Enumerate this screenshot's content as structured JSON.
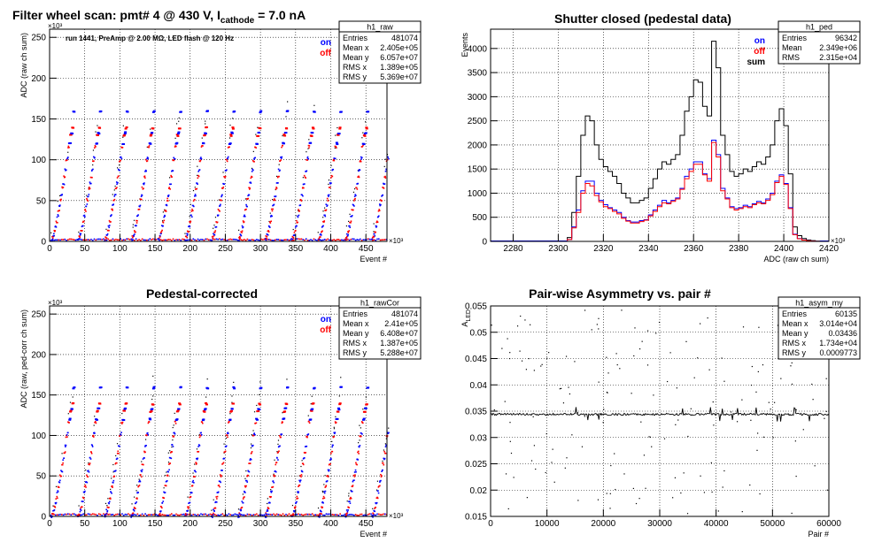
{
  "colors": {
    "on": "#0000ff",
    "off": "#ff0000",
    "sum": "#000000",
    "frame": "#000000",
    "grid": "#000000"
  },
  "chart_data": [
    {
      "id": "raw",
      "type": "scatter",
      "title": "Filter wheel scan: pmt#   4 @   430 V, I",
      "title_sub": "cathode",
      "title_tail": " = 7.0 nA",
      "ylabel": "ADC (raw ch sum)",
      "xlabel": "Event #",
      "y_exponent": "×10³",
      "x_exponent": "×10³",
      "xlim": [
        0,
        480
      ],
      "ylim": [
        0,
        260
      ],
      "xticks": [
        0,
        50,
        100,
        150,
        200,
        250,
        300,
        350,
        400,
        450
      ],
      "yticks": [
        0,
        50,
        100,
        150,
        200,
        250
      ],
      "annotation": "run 1441, PreAmp @ 2.00 MΩ,  LED flash @  120 Hz",
      "legend": [
        "on",
        "off"
      ],
      "stats": {
        "title": "h1_raw",
        "rows": [
          [
            "Entries",
            "481074"
          ],
          [
            "Mean x",
            "2.405e+05"
          ],
          [
            "Mean y",
            "6.057e+07"
          ],
          [
            "RMS x",
            "1.389e+05"
          ],
          [
            "RMS y",
            "5.369e+07"
          ]
        ]
      },
      "levels": [
        3,
        6,
        9,
        13,
        19,
        25,
        32,
        39,
        45,
        52,
        57,
        66,
        72,
        80,
        88,
        100,
        103,
        117,
        121,
        131,
        134,
        140,
        160
      ],
      "cycle_period": 38
    },
    {
      "id": "ped",
      "type": "line",
      "title": "Shutter closed (pedestal data)",
      "ylabel": "Events",
      "xlabel": "ADC (raw ch sum)",
      "x_exponent": "×10³",
      "xlim": [
        2270,
        2420
      ],
      "ylim": [
        0,
        4400
      ],
      "xticks": [
        2280,
        2300,
        2320,
        2340,
        2360,
        2380,
        2400,
        2420
      ],
      "yticks": [
        0,
        500,
        1000,
        1500,
        2000,
        2500,
        3000,
        3500,
        4000
      ],
      "legend": [
        "on",
        "off",
        "sum"
      ],
      "stats": {
        "title": "h1_ped",
        "rows": [
          [
            "Entries",
            "96342"
          ],
          [
            "Mean",
            "2.349e+06"
          ],
          [
            "RMS",
            "2.315e+04"
          ]
        ]
      },
      "bin_start": 2304,
      "bin_width": 2,
      "series": [
        {
          "name": "sum",
          "values": [
            80,
            600,
            1350,
            2200,
            2600,
            2500,
            2000,
            1700,
            1550,
            1450,
            1350,
            1200,
            1000,
            900,
            800,
            800,
            850,
            900,
            1100,
            1300,
            1500,
            1650,
            1600,
            1700,
            1800,
            2200,
            2700,
            3000,
            3350,
            3300,
            2800,
            2600,
            4150,
            3600,
            2200,
            1800,
            1450,
            1350,
            1400,
            1500,
            1450,
            1550,
            1650,
            1600,
            1750,
            2000,
            2500,
            2750,
            2400,
            1400,
            300,
            120,
            60,
            30,
            15,
            5
          ]
        },
        {
          "name": "on",
          "values": [
            40,
            300,
            650,
            1050,
            1250,
            1250,
            1000,
            850,
            760,
            700,
            650,
            600,
            500,
            430,
            400,
            400,
            430,
            450,
            550,
            650,
            750,
            850,
            800,
            850,
            900,
            1100,
            1350,
            1500,
            1650,
            1650,
            1400,
            1300,
            2100,
            1800,
            1100,
            900,
            720,
            680,
            700,
            750,
            720,
            780,
            830,
            800,
            880,
            1000,
            1250,
            1380,
            1200,
            700,
            150,
            60,
            30,
            15,
            8,
            3
          ]
        },
        {
          "name": "off",
          "values": [
            40,
            280,
            600,
            1000,
            1200,
            1150,
            950,
            820,
            720,
            680,
            620,
            570,
            480,
            420,
            380,
            380,
            410,
            440,
            530,
            620,
            720,
            800,
            780,
            830,
            880,
            1080,
            1300,
            1450,
            1600,
            1600,
            1380,
            1250,
            2050,
            1750,
            1050,
            880,
            700,
            650,
            680,
            720,
            700,
            760,
            800,
            780,
            850,
            970,
            1220,
            1350,
            1180,
            680,
            140,
            55,
            28,
            14,
            7,
            2
          ]
        }
      ]
    },
    {
      "id": "rawcor",
      "type": "scatter",
      "title": "Pedestal-corrected",
      "ylabel": "ADC (raw, ped-corr ch sum)",
      "xlabel": "Event #",
      "y_exponent": "×10³",
      "x_exponent": "×10³",
      "xlim": [
        0,
        480
      ],
      "ylim": [
        0,
        260
      ],
      "xticks": [
        0,
        50,
        100,
        150,
        200,
        250,
        300,
        350,
        400,
        450
      ],
      "yticks": [
        0,
        50,
        100,
        150,
        200,
        250
      ],
      "legend": [
        "on",
        "off"
      ],
      "stats": {
        "title": "h1_rawCor",
        "rows": [
          [
            "Entries",
            "481074"
          ],
          [
            "Mean x",
            "2.41e+05"
          ],
          [
            "Mean y",
            "6.408e+07"
          ],
          [
            "RMS x",
            "1.387e+05"
          ],
          [
            "RMS y",
            "5.288e+07"
          ]
        ]
      },
      "levels": [
        1,
        4,
        8,
        12,
        18,
        24,
        31,
        38,
        44,
        51,
        57,
        66,
        72,
        80,
        88,
        100,
        103,
        117,
        121,
        131,
        134,
        140,
        160
      ],
      "cycle_period": 38
    },
    {
      "id": "asym",
      "type": "scatter",
      "title": "Pair-wise Asymmetry vs. pair #",
      "ylabel": "A",
      "ylabel_sub": "LED",
      "xlabel": "Pair #",
      "xlim": [
        0,
        60000
      ],
      "ylim": [
        0.015,
        0.055
      ],
      "xticks": [
        0,
        10000,
        20000,
        30000,
        40000,
        50000,
        60000
      ],
      "yticks": [
        0.015,
        0.02,
        0.025,
        0.03,
        0.035,
        0.04,
        0.045,
        0.05,
        0.055
      ],
      "stats": {
        "title": "h1_asym_my",
        "rows": [
          [
            "Entries",
            "60135"
          ],
          [
            "Mean x",
            "3.014e+04"
          ],
          [
            "Mean y",
            "0.03436"
          ],
          [
            "RMS x",
            "1.734e+04"
          ],
          [
            "RMS y",
            "0.0009773"
          ]
        ]
      },
      "band_center": 0.0344,
      "band_width": 0.0004
    }
  ]
}
